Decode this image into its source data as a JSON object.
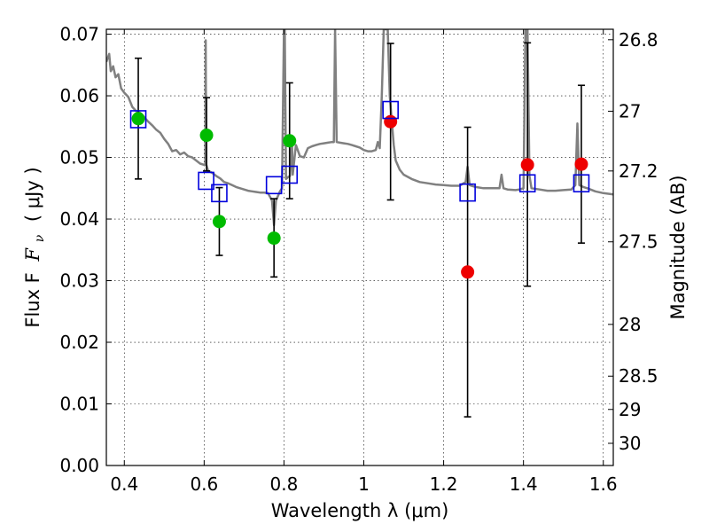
{
  "chart_data": {
    "type": "scatter",
    "xlabel": "Wavelength  λ (μm)",
    "ylabel": "Flux  F",
    "ylabel_subscript": "ν",
    "ylabel_unit": "( μJy )",
    "ylabel_right": "Magnitude (AB)",
    "xlim": [
      0.355,
      1.625
    ],
    "ylim": [
      0.0,
      0.0708
    ],
    "grid": true,
    "x_ticks": [
      {
        "value": 0.4,
        "label": "0.4"
      },
      {
        "value": 0.6,
        "label": "0.6"
      },
      {
        "value": 0.8,
        "label": "0.8"
      },
      {
        "value": 1.0,
        "label": "1"
      },
      {
        "value": 1.2,
        "label": "1.2"
      },
      {
        "value": 1.4,
        "label": "1.4"
      },
      {
        "value": 1.6,
        "label": "1.6"
      }
    ],
    "y_ticks": [
      {
        "value": 0.0,
        "label": "0.00"
      },
      {
        "value": 0.01,
        "label": "0.01"
      },
      {
        "value": 0.02,
        "label": "0.02"
      },
      {
        "value": 0.03,
        "label": "0.03"
      },
      {
        "value": 0.04,
        "label": "0.04"
      },
      {
        "value": 0.05,
        "label": "0.05"
      },
      {
        "value": 0.06,
        "label": "0.06"
      },
      {
        "value": 0.07,
        "label": "0.07"
      }
    ],
    "right_ticks": [
      {
        "flux": 0.0691,
        "label": "26.8"
      },
      {
        "flux": 0.0575,
        "label": "27"
      },
      {
        "flux": 0.0478,
        "label": "27.2"
      },
      {
        "flux": 0.0363,
        "label": "27.5"
      },
      {
        "flux": 0.0229,
        "label": "28"
      },
      {
        "flux": 0.0145,
        "label": "28.5"
      },
      {
        "flux": 0.0091,
        "label": "29"
      },
      {
        "flux": 0.0036,
        "label": "30"
      }
    ],
    "series": [
      {
        "name": "green observed",
        "marker": "circle",
        "color": "#00bb00",
        "points": [
          {
            "x": 0.435,
            "y": 0.0563,
            "err_low": 0.0465,
            "err_high": 0.0661
          },
          {
            "x": 0.606,
            "y": 0.0536,
            "err_low": 0.0478,
            "err_high": 0.0597
          },
          {
            "x": 0.638,
            "y": 0.0396,
            "err_low": 0.0341,
            "err_high": 0.0451
          },
          {
            "x": 0.775,
            "y": 0.0369,
            "err_low": 0.0306,
            "err_high": 0.0433
          },
          {
            "x": 0.814,
            "y": 0.0527,
            "err_low": 0.0433,
            "err_high": 0.0621
          }
        ]
      },
      {
        "name": "red observed",
        "marker": "circle",
        "color": "#ee0000",
        "points": [
          {
            "x": 1.067,
            "y": 0.0558,
            "err_low": 0.0431,
            "err_high": 0.0685
          },
          {
            "x": 1.26,
            "y": 0.0314,
            "err_low": 0.0079,
            "err_high": 0.0549
          },
          {
            "x": 1.41,
            "y": 0.0488,
            "err_low": 0.0291,
            "err_high": 0.0686
          },
          {
            "x": 1.545,
            "y": 0.0489,
            "err_low": 0.0361,
            "err_high": 0.0617
          }
        ]
      },
      {
        "name": "model photometry",
        "marker": "square-open",
        "color": "#0000dd",
        "points": [
          {
            "x": 0.435,
            "y": 0.0562
          },
          {
            "x": 0.605,
            "y": 0.0462
          },
          {
            "x": 0.638,
            "y": 0.0442
          },
          {
            "x": 0.775,
            "y": 0.0455
          },
          {
            "x": 0.814,
            "y": 0.0472
          },
          {
            "x": 1.067,
            "y": 0.0577
          },
          {
            "x": 1.26,
            "y": 0.0443
          },
          {
            "x": 1.41,
            "y": 0.0458
          },
          {
            "x": 1.545,
            "y": 0.0458
          }
        ]
      }
    ],
    "model_spectrum": {
      "name": "SED model",
      "color": "#808080",
      "points": [
        [
          0.355,
          0.0655
        ],
        [
          0.362,
          0.0668
        ],
        [
          0.366,
          0.064
        ],
        [
          0.372,
          0.0648
        ],
        [
          0.378,
          0.063
        ],
        [
          0.385,
          0.0635
        ],
        [
          0.392,
          0.0612
        ],
        [
          0.4,
          0.0605
        ],
        [
          0.41,
          0.0598
        ],
        [
          0.42,
          0.0582
        ],
        [
          0.43,
          0.0575
        ],
        [
          0.44,
          0.0572
        ],
        [
          0.45,
          0.0565
        ],
        [
          0.46,
          0.0558
        ],
        [
          0.47,
          0.0552
        ],
        [
          0.48,
          0.0545
        ],
        [
          0.49,
          0.054
        ],
        [
          0.5,
          0.053
        ],
        [
          0.51,
          0.0522
        ],
        [
          0.52,
          0.051
        ],
        [
          0.53,
          0.0512
        ],
        [
          0.54,
          0.0505
        ],
        [
          0.55,
          0.0508
        ],
        [
          0.56,
          0.0502
        ],
        [
          0.57,
          0.05
        ],
        [
          0.58,
          0.0495
        ],
        [
          0.59,
          0.049
        ],
        [
          0.6,
          0.0488
        ],
        [
          0.603,
          0.0489
        ],
        [
          0.604,
          0.069
        ],
        [
          0.605,
          0.0489
        ],
        [
          0.61,
          0.0478
        ],
        [
          0.62,
          0.0475
        ],
        [
          0.63,
          0.047
        ],
        [
          0.64,
          0.0466
        ],
        [
          0.65,
          0.046
        ],
        [
          0.66,
          0.0458
        ],
        [
          0.67,
          0.0455
        ],
        [
          0.68,
          0.0452
        ],
        [
          0.69,
          0.045
        ],
        [
          0.7,
          0.0448
        ],
        [
          0.71,
          0.0446
        ],
        [
          0.72,
          0.0445
        ],
        [
          0.73,
          0.0444
        ],
        [
          0.74,
          0.0443
        ],
        [
          0.75,
          0.0443
        ],
        [
          0.76,
          0.0442
        ],
        [
          0.77,
          0.043
        ],
        [
          0.775,
          0.039
        ],
        [
          0.78,
          0.043
        ],
        [
          0.79,
          0.0445
        ],
        [
          0.795,
          0.045
        ],
        [
          0.8,
          0.0708
        ],
        [
          0.802,
          0.0708
        ],
        [
          0.805,
          0.0465
        ],
        [
          0.81,
          0.0468
        ],
        [
          0.815,
          0.047
        ],
        [
          0.82,
          0.053
        ],
        [
          0.822,
          0.0472
        ],
        [
          0.83,
          0.052
        ],
        [
          0.84,
          0.0502
        ],
        [
          0.85,
          0.05
        ],
        [
          0.86,
          0.0515
        ],
        [
          0.87,
          0.0518
        ],
        [
          0.88,
          0.052
        ],
        [
          0.89,
          0.0522
        ],
        [
          0.9,
          0.0523
        ],
        [
          0.91,
          0.0524
        ],
        [
          0.92,
          0.0525
        ],
        [
          0.925,
          0.0525
        ],
        [
          0.928,
          0.0708
        ],
        [
          0.932,
          0.0525
        ],
        [
          0.94,
          0.0524
        ],
        [
          0.95,
          0.0523
        ],
        [
          0.96,
          0.0522
        ],
        [
          0.97,
          0.052
        ],
        [
          0.98,
          0.0518
        ],
        [
          0.99,
          0.0516
        ],
        [
          1.0,
          0.0512
        ],
        [
          1.01,
          0.051
        ],
        [
          1.02,
          0.051
        ],
        [
          1.03,
          0.0512
        ],
        [
          1.035,
          0.0525
        ],
        [
          1.04,
          0.0515
        ],
        [
          1.045,
          0.06
        ],
        [
          1.05,
          0.0708
        ],
        [
          1.06,
          0.0708
        ],
        [
          1.065,
          0.06
        ],
        [
          1.07,
          0.056
        ],
        [
          1.075,
          0.052
        ],
        [
          1.08,
          0.0495
        ],
        [
          1.09,
          0.048
        ],
        [
          1.1,
          0.0472
        ],
        [
          1.12,
          0.0465
        ],
        [
          1.14,
          0.046
        ],
        [
          1.16,
          0.0458
        ],
        [
          1.18,
          0.0456
        ],
        [
          1.2,
          0.0455
        ],
        [
          1.22,
          0.0454
        ],
        [
          1.24,
          0.0454
        ],
        [
          1.255,
          0.046
        ],
        [
          1.26,
          0.0485
        ],
        [
          1.265,
          0.0455
        ],
        [
          1.28,
          0.0452
        ],
        [
          1.3,
          0.045
        ],
        [
          1.32,
          0.045
        ],
        [
          1.34,
          0.045
        ],
        [
          1.345,
          0.0472
        ],
        [
          1.35,
          0.045
        ],
        [
          1.36,
          0.0448
        ],
        [
          1.38,
          0.0447
        ],
        [
          1.39,
          0.0448
        ],
        [
          1.4,
          0.045
        ],
        [
          1.405,
          0.0708
        ],
        [
          1.41,
          0.0708
        ],
        [
          1.415,
          0.047
        ],
        [
          1.42,
          0.045
        ],
        [
          1.44,
          0.0448
        ],
        [
          1.46,
          0.0446
        ],
        [
          1.48,
          0.0446
        ],
        [
          1.5,
          0.0447
        ],
        [
          1.52,
          0.0448
        ],
        [
          1.53,
          0.0455
        ],
        [
          1.535,
          0.0555
        ],
        [
          1.54,
          0.0455
        ],
        [
          1.55,
          0.0452
        ],
        [
          1.56,
          0.045
        ],
        [
          1.58,
          0.0445
        ],
        [
          1.6,
          0.0442
        ],
        [
          1.625,
          0.044
        ]
      ]
    }
  }
}
